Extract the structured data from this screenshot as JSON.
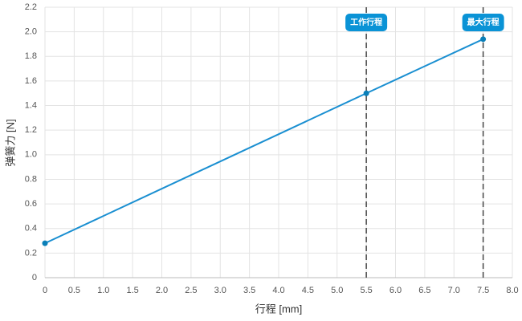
{
  "chart_data": {
    "type": "line",
    "x_label": "行程 [mm]",
    "y_label": "弹簧力 [N]",
    "x": [
      0,
      5.5,
      7.5
    ],
    "series": [
      {
        "name": "弹簧力",
        "color": "#1a8fd1",
        "values": [
          0.28,
          1.5,
          1.94
        ]
      }
    ],
    "xlim": [
      0,
      8
    ],
    "ylim": [
      0,
      2.2
    ],
    "xticks": [
      0,
      0.5,
      {
        "value": 1,
        "label": "1.0"
      },
      1.5,
      {
        "value": 2,
        "label": "2.0"
      },
      2.5,
      {
        "value": 3,
        "label": "3.0"
      },
      3.5,
      {
        "value": 4,
        "label": "4.0"
      },
      4.5,
      {
        "value": 5,
        "label": "5.0"
      },
      5.5,
      {
        "value": 6,
        "label": "6.0"
      },
      6.5,
      {
        "value": 7,
        "label": "7.0"
      },
      7.5,
      {
        "value": 8,
        "label": "8.0"
      }
    ],
    "yticks": [
      0,
      0.2,
      0.4,
      0.6,
      0.8,
      {
        "value": 1,
        "label": "1.0"
      },
      1.2,
      1.4,
      1.6,
      1.8,
      {
        "value": 2,
        "label": "2.0"
      },
      2.2
    ],
    "grid": true,
    "annotations": [
      {
        "x": 5.5,
        "label": "工作行程"
      },
      {
        "x": 7.5,
        "label": "最大行程"
      }
    ]
  }
}
